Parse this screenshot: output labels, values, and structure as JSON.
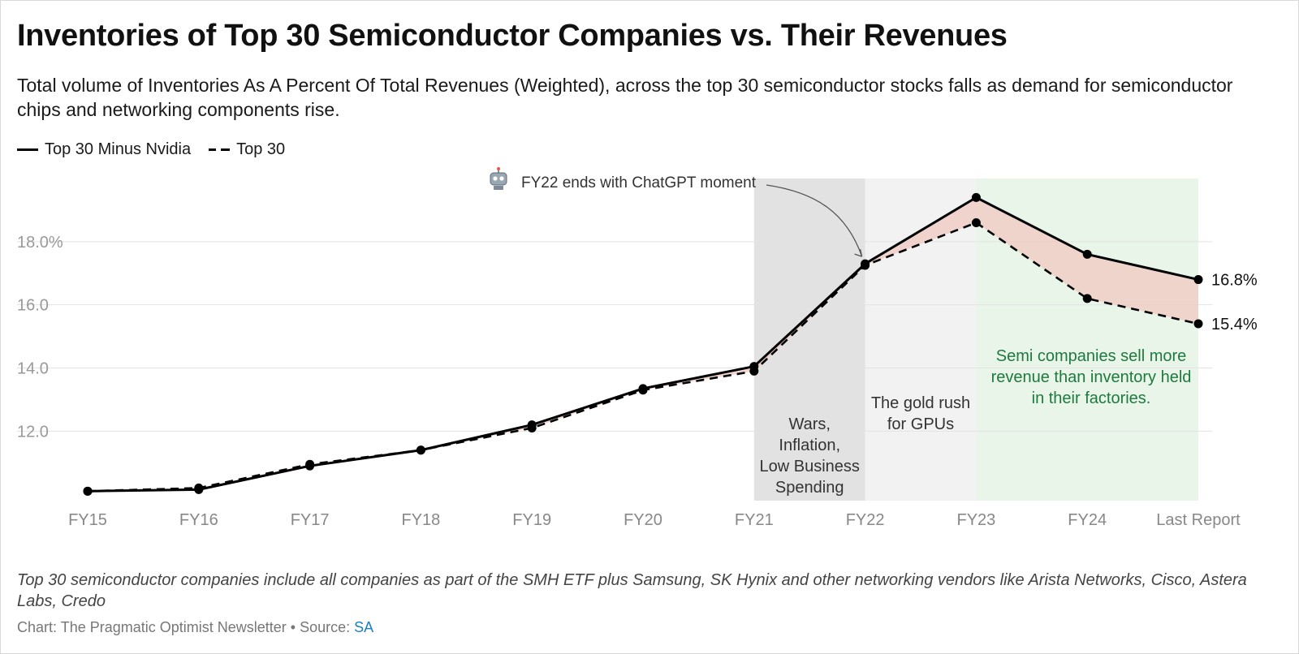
{
  "header": {
    "title": "Inventories of Top 30 Semiconductor Companies vs. Their Revenues",
    "subtitle": "Total volume of Inventories As A Percent Of Total Revenues (Weighted), across the top 30 semiconductor stocks falls as demand for semiconductor chips and networking components rise."
  },
  "legend": {
    "solid_label": "Top 30 Minus Nvidia",
    "dashed_label": "Top 30"
  },
  "chart_data": {
    "type": "line",
    "categories": [
      "FY15",
      "FY16",
      "FY17",
      "FY18",
      "FY19",
      "FY20",
      "FY21",
      "FY22",
      "FY23",
      "FY24",
      "Last Report"
    ],
    "series": [
      {
        "name": "Top 30 Minus Nvidia",
        "style": "solid",
        "values": [
          10.1,
          10.15,
          10.9,
          11.4,
          12.2,
          13.35,
          14.05,
          17.3,
          19.4,
          17.6,
          16.8
        ]
      },
      {
        "name": "Top 30",
        "style": "dashed",
        "values": [
          10.1,
          10.2,
          10.95,
          11.4,
          12.1,
          13.3,
          13.9,
          17.25,
          18.6,
          16.2,
          15.4
        ]
      }
    ],
    "ylim": [
      9.8,
      20.0
    ],
    "yticks": [
      12,
      14,
      16,
      18
    ],
    "ytick_labels": [
      "12.0",
      "14.0",
      "16.0",
      "18.0%"
    ],
    "end_labels": [
      "16.8%",
      "15.4%"
    ],
    "gap_fill_color": "#f0c8c0",
    "shaded_regions": [
      {
        "from": "FY21",
        "to": "FY22",
        "color": "#e2e2e2",
        "label": "Wars,\nInflation,\nLow Business\nSpending",
        "label_color": "#333333"
      },
      {
        "from": "FY22",
        "to": "FY23",
        "color": "#f2f2f2",
        "label": "The gold rush\nfor GPUs",
        "label_color": "#333333"
      },
      {
        "from": "FY23",
        "to": "Last Report",
        "color": "#e8f5e8",
        "label": "Semi companies sell more\nrevenue than inventory held\nin their factories.",
        "label_color": "#1e7a3e"
      }
    ],
    "annotation": {
      "text": "FY22 ends with ChatGPT moment",
      "points_to": "FY22",
      "icon": "robot-icon"
    }
  },
  "footer": {
    "note": "Top 30 semiconductor companies include all companies as part of the SMH ETF plus Samsung, SK Hynix and other networking vendors like Arista Networks, Cisco, Astera Labs, Credo",
    "credit_prefix": "Chart: The Pragmatic Optimist Newsletter • Source: ",
    "source_link": "SA"
  }
}
